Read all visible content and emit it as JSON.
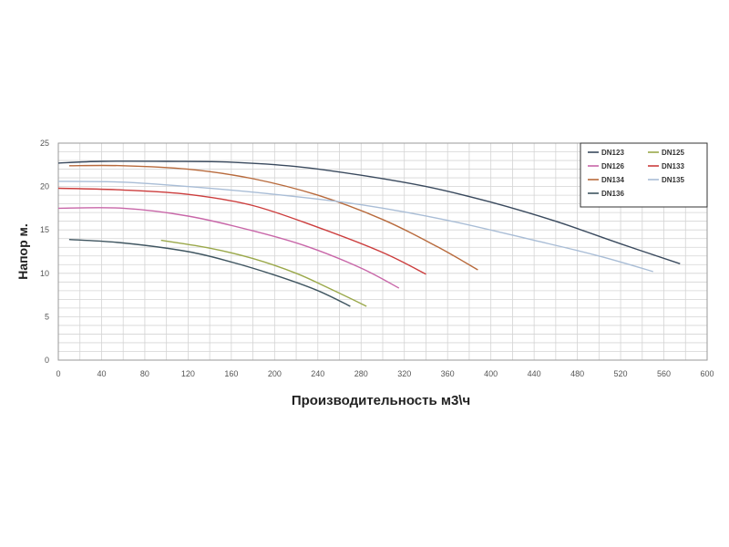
{
  "chart_data": {
    "type": "line",
    "xlabel": "Производительность м3\\ч",
    "ylabel": "Напор м.",
    "xlim": [
      0,
      600
    ],
    "ylim": [
      0,
      25
    ],
    "xticks": [
      0,
      40,
      80,
      120,
      160,
      200,
      240,
      280,
      320,
      360,
      400,
      440,
      480,
      520,
      560,
      600
    ],
    "yticks": [
      0,
      5,
      10,
      15,
      20,
      25
    ],
    "grid": true,
    "legend_position": "top-right",
    "series": [
      {
        "name": "DN123",
        "color": "#3a4a5e",
        "x": [
          0,
          40,
          100,
          160,
          220,
          280,
          340,
          400,
          460,
          520,
          575
        ],
        "y": [
          22.7,
          22.9,
          22.9,
          22.8,
          22.3,
          21.3,
          20.0,
          18.2,
          16.0,
          13.4,
          11.1
        ]
      },
      {
        "name": "DN125",
        "color": "#9aa84a",
        "x": [
          95,
          140,
          180,
          220,
          250,
          285
        ],
        "y": [
          13.8,
          12.9,
          11.7,
          10.0,
          8.3,
          6.2
        ]
      },
      {
        "name": "DN126",
        "color": "#c866a8",
        "x": [
          0,
          60,
          120,
          180,
          230,
          280,
          315
        ],
        "y": [
          17.5,
          17.5,
          16.6,
          14.9,
          13.1,
          10.6,
          8.3
        ]
      },
      {
        "name": "DN133",
        "color": "#cc3d3d",
        "x": [
          0,
          60,
          120,
          180,
          240,
          300,
          340
        ],
        "y": [
          19.8,
          19.6,
          19.1,
          17.8,
          15.3,
          12.4,
          9.9
        ]
      },
      {
        "name": "DN134",
        "color": "#b86a3c",
        "x": [
          10,
          60,
          120,
          180,
          240,
          300,
          350,
          388
        ],
        "y": [
          22.4,
          22.4,
          22.0,
          20.9,
          19.0,
          16.2,
          13.1,
          10.4
        ]
      },
      {
        "name": "DN135",
        "color": "#a9bdd6",
        "x": [
          0,
          60,
          120,
          200,
          280,
          360,
          440,
          500,
          550
        ],
        "y": [
          20.6,
          20.5,
          20.0,
          19.1,
          17.9,
          16.1,
          13.8,
          12.0,
          10.2
        ]
      },
      {
        "name": "DN136",
        "color": "#3f5560",
        "x": [
          10,
          60,
          120,
          160,
          200,
          240,
          270
        ],
        "y": [
          13.9,
          13.5,
          12.5,
          11.3,
          9.8,
          8.0,
          6.2
        ]
      }
    ]
  }
}
